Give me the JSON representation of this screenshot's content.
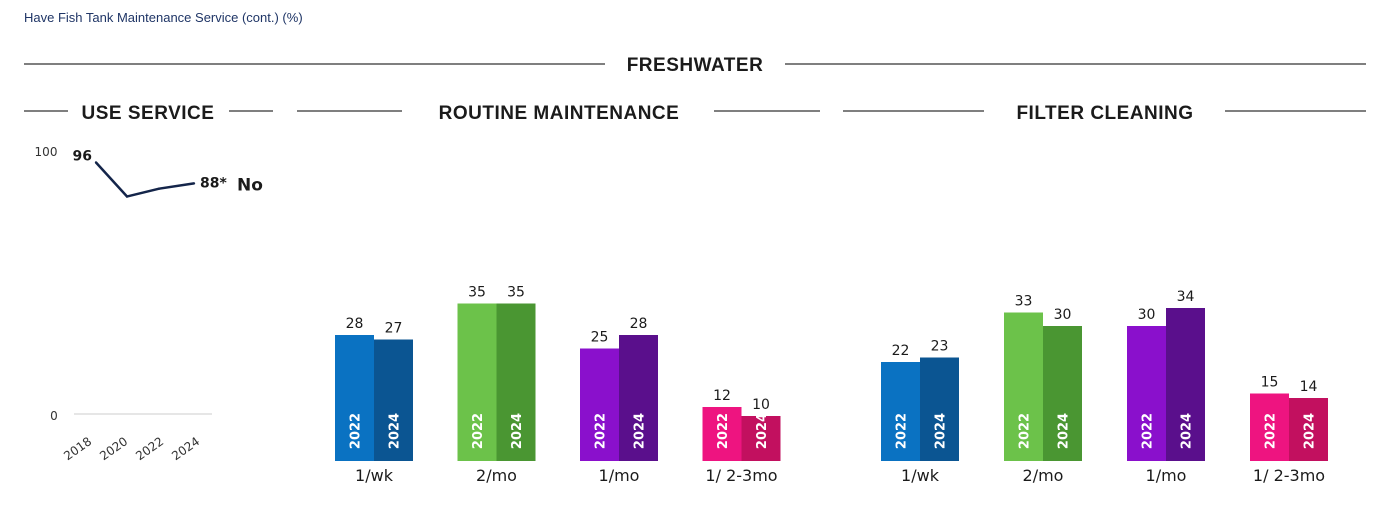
{
  "page_title": "Have Fish Tank Maintenance Service (cont.) (%)",
  "section_title": "FRESHWATER",
  "chart_data": [
    {
      "type": "line",
      "title": "USE SERVICE",
      "x": [
        "2018",
        "2020",
        "2022",
        "2024"
      ],
      "series": [
        {
          "name": "No",
          "values": [
            96,
            83,
            86,
            88
          ],
          "labels": [
            "96",
            "",
            "",
            "88*"
          ],
          "color": "#14254a"
        }
      ],
      "ylim": [
        0,
        100
      ],
      "yticks": [
        "0",
        "100"
      ]
    },
    {
      "type": "bar",
      "title": "ROUTINE MAINTENANCE",
      "categories": [
        "1/wk",
        "2/mo",
        "1/mo",
        "1/ 2-3mo"
      ],
      "years": [
        "2022",
        "2024"
      ],
      "values": [
        [
          28,
          27
        ],
        [
          35,
          35
        ],
        [
          25,
          28
        ],
        [
          12,
          10
        ]
      ],
      "colors": [
        [
          "#0a72c2",
          "#0b5592"
        ],
        [
          "#6cc24a",
          "#4a9632"
        ],
        [
          "#8a10cc",
          "#5a0f8c"
        ],
        [
          "#ee1480",
          "#c2105f"
        ]
      ]
    },
    {
      "type": "bar",
      "title": "FILTER CLEANING",
      "categories": [
        "1/wk",
        "2/mo",
        "1/mo",
        "1/ 2-3mo"
      ],
      "years": [
        "2022",
        "2024"
      ],
      "values": [
        [
          22,
          23
        ],
        [
          33,
          30
        ],
        [
          30,
          34
        ],
        [
          15,
          14
        ]
      ],
      "colors": [
        [
          "#0a72c2",
          "#0b5592"
        ],
        [
          "#6cc24a",
          "#4a9632"
        ],
        [
          "#8a10cc",
          "#5a0f8c"
        ],
        [
          "#ee1480",
          "#c2105f"
        ]
      ]
    }
  ]
}
